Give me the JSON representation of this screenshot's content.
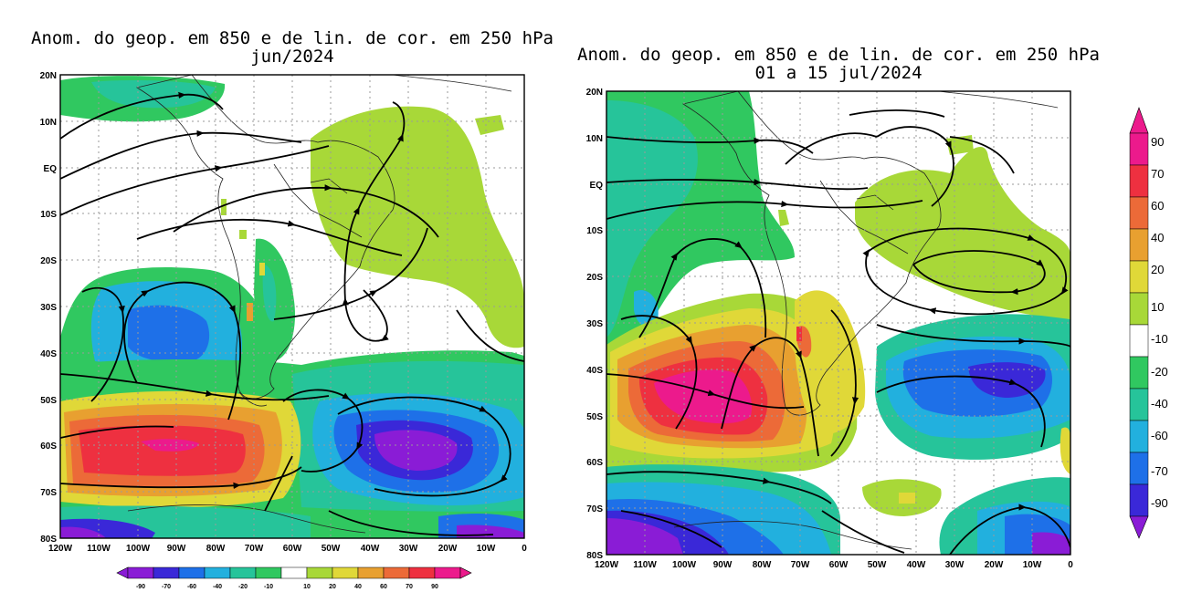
{
  "panels": [
    {
      "title_line1": "Anom. do geop. em 850 e de lin. de cor. em 250 hPa",
      "title_line2": "jun/2024",
      "lat_labels": [
        "20N",
        "10N",
        "EQ",
        "10S",
        "20S",
        "30S",
        "40S",
        "50S",
        "60S",
        "70S",
        "80S"
      ],
      "lon_labels": [
        "120W",
        "110W",
        "100W",
        "90W",
        "80W",
        "70W",
        "60W",
        "50W",
        "40W",
        "30W",
        "20W",
        "10W",
        "0"
      ]
    },
    {
      "title_line1": "Anom. do geop. em 850 e de lin. de cor. em 250 hPa",
      "title_line2": "01 a 15 jul/2024",
      "lat_labels": [
        "20N",
        "10N",
        "EQ",
        "10S",
        "20S",
        "30S",
        "40S",
        "50S",
        "60S",
        "70S",
        "80S"
      ],
      "lon_labels": [
        "120W",
        "110W",
        "100W",
        "90W",
        "80W",
        "70W",
        "60W",
        "50W",
        "40W",
        "30W",
        "20W",
        "10W",
        "0"
      ]
    }
  ],
  "colorbar_horizontal": {
    "labels": [
      "-90",
      "-70",
      "-60",
      "-40",
      "-20",
      "-10",
      "10",
      "20",
      "40",
      "60",
      "70",
      "90"
    ]
  },
  "colorbar_vertical": {
    "labels": [
      "90",
      "70",
      "60",
      "40",
      "20",
      "10",
      "-10",
      "-20",
      "-40",
      "-60",
      "-70",
      "-90"
    ]
  },
  "colors": {
    "neg90": "#8a1cd6",
    "neg70": "#3a28d8",
    "neg60": "#1e70e8",
    "neg40": "#22b0de",
    "neg20": "#26c49a",
    "neg10": "#30c860",
    "zero": "#ffffff",
    "pos10": "#a8d838",
    "pos20": "#e0d838",
    "pos40": "#e8a030",
    "pos60": "#ec6a38",
    "pos70": "#ee3040",
    "pos90": "#ec1a8c"
  }
}
